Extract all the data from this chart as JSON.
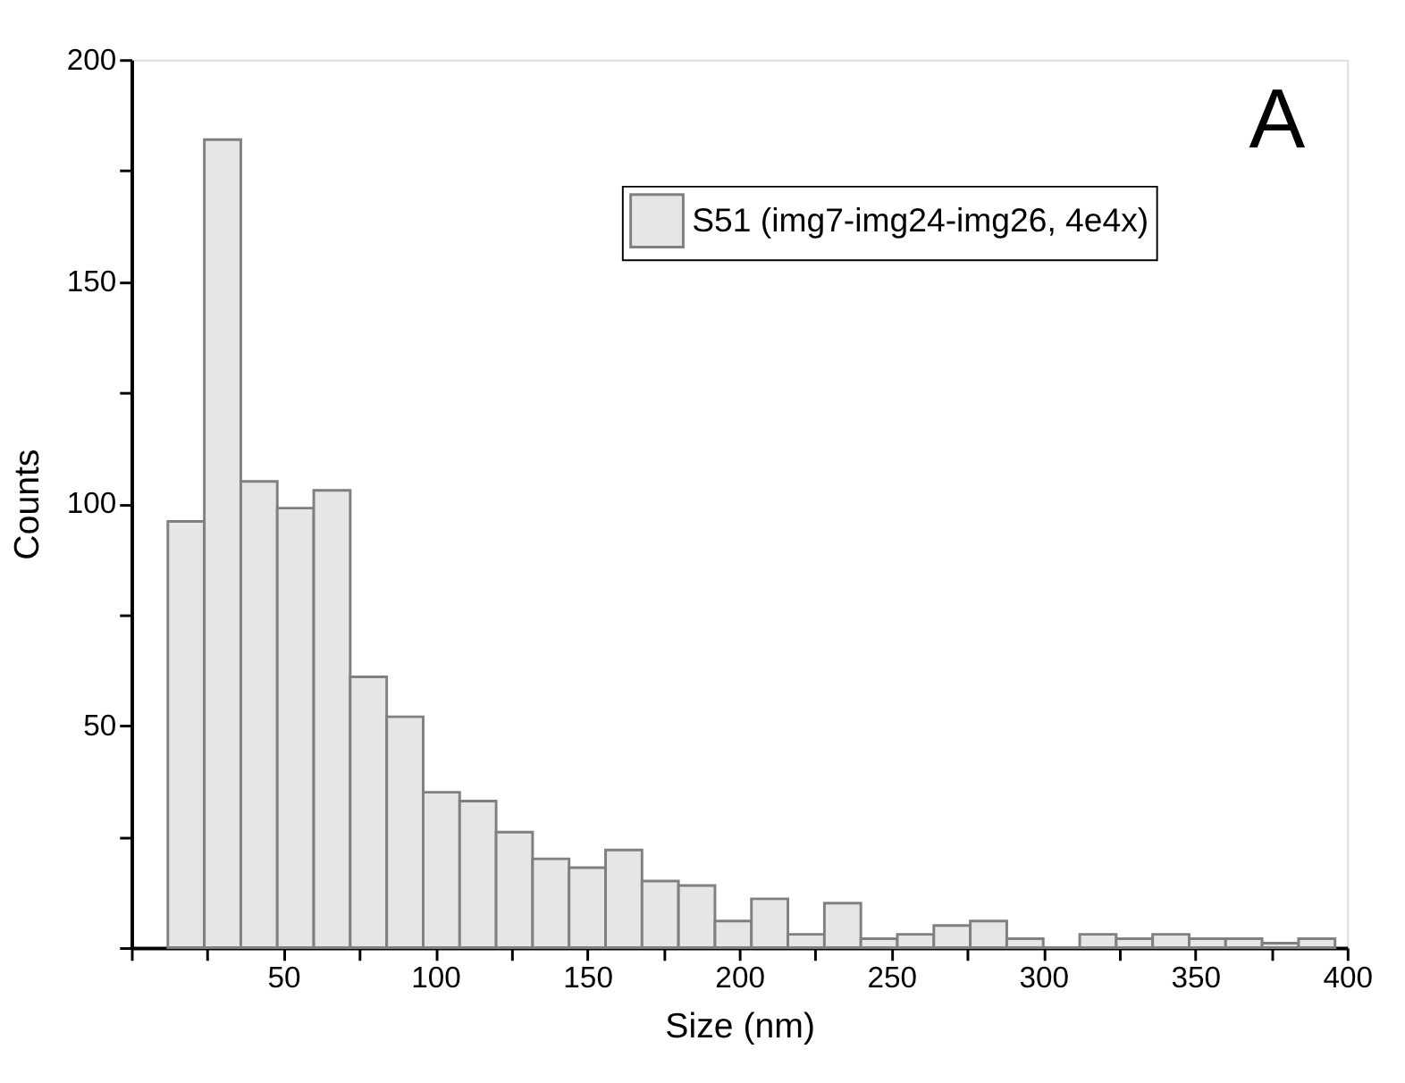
{
  "chart_data": {
    "type": "histogram",
    "bins": [
      12,
      24,
      36,
      48,
      60,
      72,
      84,
      96,
      108,
      120,
      132,
      144,
      156,
      168,
      180,
      192,
      204,
      216,
      228,
      240,
      252,
      264,
      276,
      288,
      300,
      312,
      324,
      336,
      348,
      360,
      372,
      384,
      396
    ],
    "series": [
      {
        "name": "S51 (img7-img24-img26, 4e4x)",
        "color": "#808080",
        "values": [
          96,
          182,
          105,
          99,
          103,
          61,
          52,
          35,
          33,
          26,
          20,
          18,
          22,
          15,
          14,
          6,
          11,
          3,
          10,
          2,
          3,
          5,
          6,
          2,
          0,
          3,
          2,
          3,
          2,
          2,
          1,
          2
        ]
      }
    ],
    "xlabel": "Size (nm)",
    "ylabel": "Counts",
    "xlim": [
      0,
      400
    ],
    "ylim": [
      0,
      200
    ],
    "xticks": [
      {
        "value": 0,
        "label": null
      },
      {
        "value": 25,
        "label": null
      },
      50,
      {
        "value": 75,
        "label": null
      },
      100,
      {
        "value": 125,
        "label": null
      },
      150,
      {
        "value": 175,
        "label": null
      },
      200,
      {
        "value": 225,
        "label": null
      },
      250,
      {
        "value": 275,
        "label": null
      },
      300,
      {
        "value": 325,
        "label": null
      },
      350,
      {
        "value": 375,
        "label": null
      },
      400
    ],
    "yticks": [
      {
        "value": 0,
        "label": null
      },
      {
        "value": 25,
        "label": null
      },
      50,
      {
        "value": 75,
        "label": null
      },
      100,
      {
        "value": 125,
        "label": null
      },
      150,
      {
        "value": 175,
        "label": null
      },
      200
    ],
    "annotations": [
      "A"
    ],
    "grid": false,
    "legend": "top right"
  }
}
